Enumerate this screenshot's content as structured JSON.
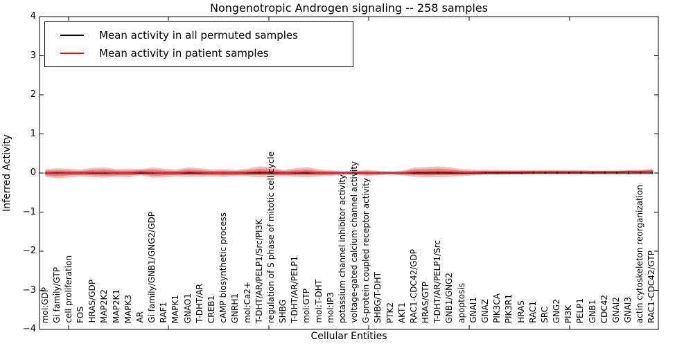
{
  "figure": {
    "title": "Nongenotropic Androgen signaling -- 258 samples",
    "xlabel": "Cellular Entities",
    "ylabel": "Inferred Activity"
  },
  "legend": {
    "items": [
      {
        "label": "Mean activity in all permuted samples",
        "color": "#000000"
      },
      {
        "label": "Mean activity in patient samples",
        "color": "#ff0000"
      }
    ]
  },
  "chart_data": {
    "type": "line",
    "title": "Nongenotropic Androgen signaling -- 258 samples",
    "xlabel": "Cellular Entities",
    "ylabel": "Inferred Activity",
    "ylim": [
      -4,
      4
    ],
    "yticks": [
      4,
      3,
      2,
      1,
      0,
      -1,
      -2,
      -3,
      -4
    ],
    "grid": false,
    "legend_position": "upper left",
    "categories": [
      "mol:GDP",
      "Gi family/GTP",
      "cell proliferation",
      "FOS",
      "HRAS/GDP",
      "MAP2K2",
      "MAP2K1",
      "MAPK3",
      "AR",
      "Gi family/GNB1/GNG2/GDP",
      "RAF1",
      "MAPK1",
      "GNAO1",
      "T-DHT/AR",
      "CREB1",
      "cAMP biosynthetic process",
      "GNRH1",
      "mol:Ca2+",
      "T-DHT/AR/PELP1/Src/PI3K",
      "regulation of S phase of mitotic cell cycle",
      "SHBG",
      "T-DHT/AR/PELP1",
      "mol:GTP",
      "mol:T-DHT",
      "mol:IP3",
      "potassium channel inhibitor activity",
      "voltage-gated calcium channel activity",
      "G-protein coupled receptor activity",
      "SHBG/T-DHT",
      "PTK2",
      "AKT1",
      "RAC1-CDC42/GDP",
      "HRAS/GTP",
      "T-DHT/AR/PELP1/Src",
      "GNB1/GNG2",
      "apoptosis",
      "GNAI1",
      "GNAZ",
      "PIK3CA",
      "PIK3R1",
      "HRAS",
      "RAC1",
      "SRC",
      "GNG2",
      "PI3K",
      "PELP1",
      "GNB1",
      "CDC42",
      "GNAI2",
      "GNAI3",
      "actin cytoskeleton reorganization",
      "RAC1-CDC42/GTP"
    ],
    "series": [
      {
        "name": "Mean activity in all permuted samples",
        "color": "#000000",
        "values": [
          0,
          0,
          0,
          0,
          0,
          0,
          0,
          0,
          0,
          0,
          0,
          0,
          0,
          0,
          0,
          0,
          0,
          0,
          0,
          0,
          0,
          0,
          0,
          0,
          0,
          0,
          0,
          0,
          0,
          0,
          0,
          0,
          0,
          0,
          0,
          0,
          0,
          0,
          0,
          0,
          0,
          0,
          0,
          0,
          0,
          0,
          0,
          0,
          0,
          0,
          0,
          0
        ]
      },
      {
        "name": "Mean activity in patient samples",
        "color": "#ff0000",
        "values": [
          0,
          -0.01,
          0,
          0,
          0.01,
          0.01,
          0,
          0,
          0.02,
          0.01,
          0,
          0,
          0.02,
          0.01,
          0,
          0,
          0,
          0.01,
          0.03,
          0.02,
          0,
          0.01,
          0.02,
          0,
          0,
          0,
          0.01,
          0,
          0,
          0,
          0,
          0.02,
          0.02,
          0.03,
          0.02,
          0.01,
          0.01,
          0.02,
          0.02,
          0.02,
          0.02,
          0.03,
          0.03,
          0.03,
          0.03,
          0.03,
          0.03,
          0.03,
          0.03,
          0.04,
          0.04,
          0.05
        ]
      }
    ],
    "bands": [
      {
        "name": "patient-band-outer",
        "color": "rgba(210,50,50,0.32)",
        "halfwidths": [
          0.1,
          0.13,
          0.11,
          0.09,
          0.12,
          0.13,
          0.1,
          0.11,
          0.08,
          0.13,
          0.11,
          0.09,
          0.12,
          0.11,
          0.09,
          0.1,
          0.08,
          0.1,
          0.14,
          0.12,
          0.08,
          0.11,
          0.13,
          0.09,
          0.07,
          0.04,
          0.05,
          0.08,
          0.05,
          0.03,
          0.06,
          0.12,
          0.13,
          0.14,
          0.12,
          0.09,
          0.07,
          0.06,
          0.06,
          0.05,
          0.05,
          0.04,
          0.04,
          0.04,
          0.04,
          0.04,
          0.03,
          0.03,
          0.03,
          0.03,
          0.04,
          0.06
        ]
      },
      {
        "name": "patient-band-inner",
        "color": "rgba(210,50,50,0.42)",
        "halfwidths": [
          0.06,
          0.08,
          0.06,
          0.05,
          0.07,
          0.08,
          0.06,
          0.06,
          0.05,
          0.08,
          0.06,
          0.05,
          0.07,
          0.06,
          0.05,
          0.06,
          0.05,
          0.06,
          0.08,
          0.07,
          0.05,
          0.06,
          0.07,
          0.05,
          0.04,
          0.02,
          0.03,
          0.04,
          0.03,
          0.02,
          0.03,
          0.07,
          0.08,
          0.08,
          0.07,
          0.05,
          0.04,
          0.03,
          0.03,
          0.03,
          0.03,
          0.02,
          0.02,
          0.02,
          0.02,
          0.02,
          0.02,
          0.02,
          0.02,
          0.02,
          0.02,
          0.03
        ]
      },
      {
        "name": "permuted-band",
        "color": "rgba(150,150,150,0.40)",
        "halfwidth": 0.05
      }
    ]
  }
}
